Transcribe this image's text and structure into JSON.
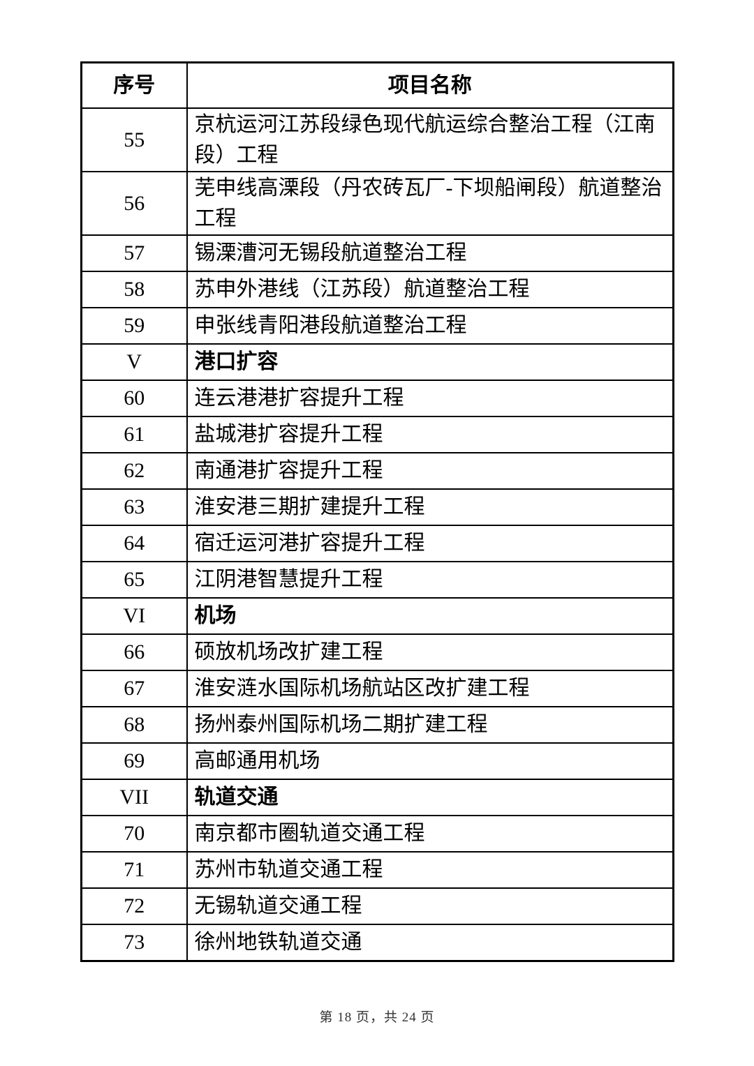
{
  "colors": {
    "background": "#ffffff",
    "text": "#000000",
    "border": "#000000",
    "footer_text": "#333333"
  },
  "table": {
    "headers": {
      "no": "序号",
      "name": "项目名称"
    },
    "rows": [
      {
        "no": "55",
        "name": "京杭运河江苏段绿色现代航运综合整治工程（江南段）工程",
        "section": false
      },
      {
        "no": "56",
        "name": "芜申线高溧段（丹农砖瓦厂-下坝船闸段）航道整治工程",
        "section": false
      },
      {
        "no": "57",
        "name": "锡溧漕河无锡段航道整治工程",
        "section": false
      },
      {
        "no": "58",
        "name": "苏申外港线（江苏段）航道整治工程",
        "section": false
      },
      {
        "no": "59",
        "name": "申张线青阳港段航道整治工程",
        "section": false
      },
      {
        "no": "V",
        "name": "港口扩容",
        "section": true
      },
      {
        "no": "60",
        "name": "连云港港扩容提升工程",
        "section": false
      },
      {
        "no": "61",
        "name": "盐城港扩容提升工程",
        "section": false
      },
      {
        "no": "62",
        "name": "南通港扩容提升工程",
        "section": false
      },
      {
        "no": "63",
        "name": "淮安港三期扩建提升工程",
        "section": false
      },
      {
        "no": "64",
        "name": "宿迁运河港扩容提升工程",
        "section": false
      },
      {
        "no": "65",
        "name": "江阴港智慧提升工程",
        "section": false
      },
      {
        "no": "VI",
        "name": "机场",
        "section": true
      },
      {
        "no": "66",
        "name": "硕放机场改扩建工程",
        "section": false
      },
      {
        "no": "67",
        "name": "淮安涟水国际机场航站区改扩建工程",
        "section": false
      },
      {
        "no": "68",
        "name": "扬州泰州国际机场二期扩建工程",
        "section": false
      },
      {
        "no": "69",
        "name": "高邮通用机场",
        "section": false
      },
      {
        "no": "VII",
        "name": "轨道交通",
        "section": true
      },
      {
        "no": "70",
        "name": "南京都市圈轨道交通工程",
        "section": false
      },
      {
        "no": "71",
        "name": "苏州市轨道交通工程",
        "section": false
      },
      {
        "no": "72",
        "name": "无锡轨道交通工程",
        "section": false
      },
      {
        "no": "73",
        "name": "徐州地铁轨道交通",
        "section": false
      }
    ]
  },
  "footer": {
    "page_indicator": "第 18 页，共 24 页"
  }
}
